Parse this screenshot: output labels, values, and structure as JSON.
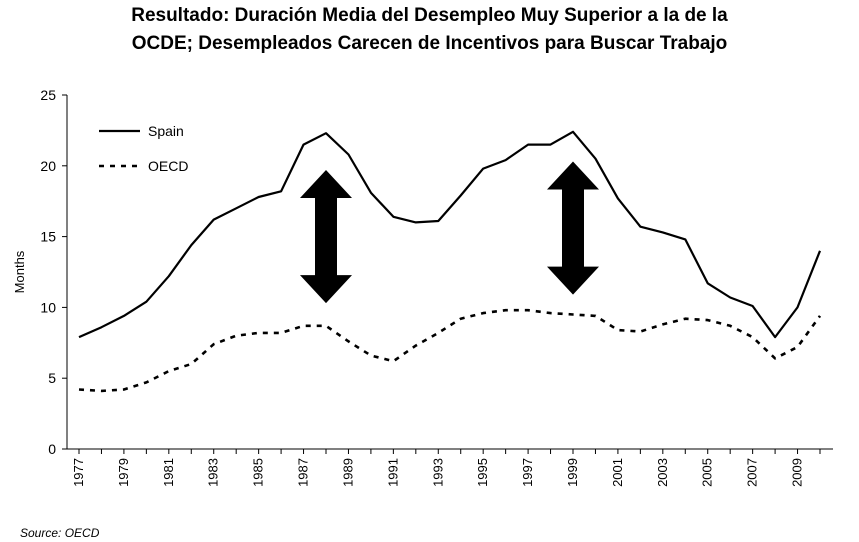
{
  "chart_data": {
    "type": "line",
    "title_lines": [
      "Resultado: Duración Media del Desempleo Muy Superior a la de la",
      "OCDE; Desempleados Carecen de Incentivos para Buscar Trabajo"
    ],
    "ylabel": "Months",
    "xlabel": "",
    "ylim": [
      0,
      25
    ],
    "yticks": [
      0,
      5,
      10,
      15,
      20,
      25
    ],
    "x": [
      1977,
      1978,
      1979,
      1980,
      1981,
      1982,
      1983,
      1984,
      1985,
      1986,
      1987,
      1988,
      1989,
      1990,
      1991,
      1992,
      1993,
      1994,
      1995,
      1996,
      1997,
      1998,
      1999,
      2000,
      2001,
      2002,
      2003,
      2004,
      2005,
      2006,
      2007,
      2008,
      2009,
      2010
    ],
    "xtick_labels": [
      "1977",
      "1979",
      "1981",
      "1983",
      "1985",
      "1987",
      "1989",
      "1991",
      "1993",
      "1995",
      "1997",
      "1999",
      "2001",
      "2003",
      "2005",
      "2007",
      "2009"
    ],
    "series": [
      {
        "name": "Spain",
        "style": "solid",
        "values": [
          7.9,
          8.6,
          9.4,
          10.4,
          12.2,
          14.4,
          16.2,
          17.0,
          17.8,
          18.2,
          21.5,
          22.3,
          20.8,
          18.1,
          16.4,
          16.0,
          16.1,
          17.9,
          19.8,
          20.4,
          21.5,
          21.5,
          22.4,
          20.5,
          17.7,
          15.7,
          15.3,
          14.8,
          11.7,
          10.7,
          10.1,
          7.9,
          10.0,
          14.0
        ]
      },
      {
        "name": "OECD",
        "style": "dashed",
        "values": [
          4.2,
          4.1,
          4.2,
          4.7,
          5.5,
          6.0,
          7.4,
          8.0,
          8.2,
          8.2,
          8.7,
          8.7,
          7.6,
          6.6,
          6.2,
          7.3,
          8.2,
          9.2,
          9.6,
          9.8,
          9.8,
          9.6,
          9.5,
          9.4,
          8.4,
          8.3,
          8.8,
          9.2,
          9.1,
          8.7,
          7.9,
          6.4,
          7.2,
          9.4
        ]
      }
    ],
    "legend": [
      "Spain",
      "OECD"
    ],
    "legend_position": "top-left",
    "grid": false,
    "annotations": [
      {
        "type": "double-arrow",
        "x": 1988,
        "y_range": [
          10.3,
          19.7
        ]
      },
      {
        "type": "double-arrow",
        "x": 1999,
        "y_range": [
          10.9,
          20.3
        ]
      }
    ],
    "source": "Source: OECD"
  }
}
